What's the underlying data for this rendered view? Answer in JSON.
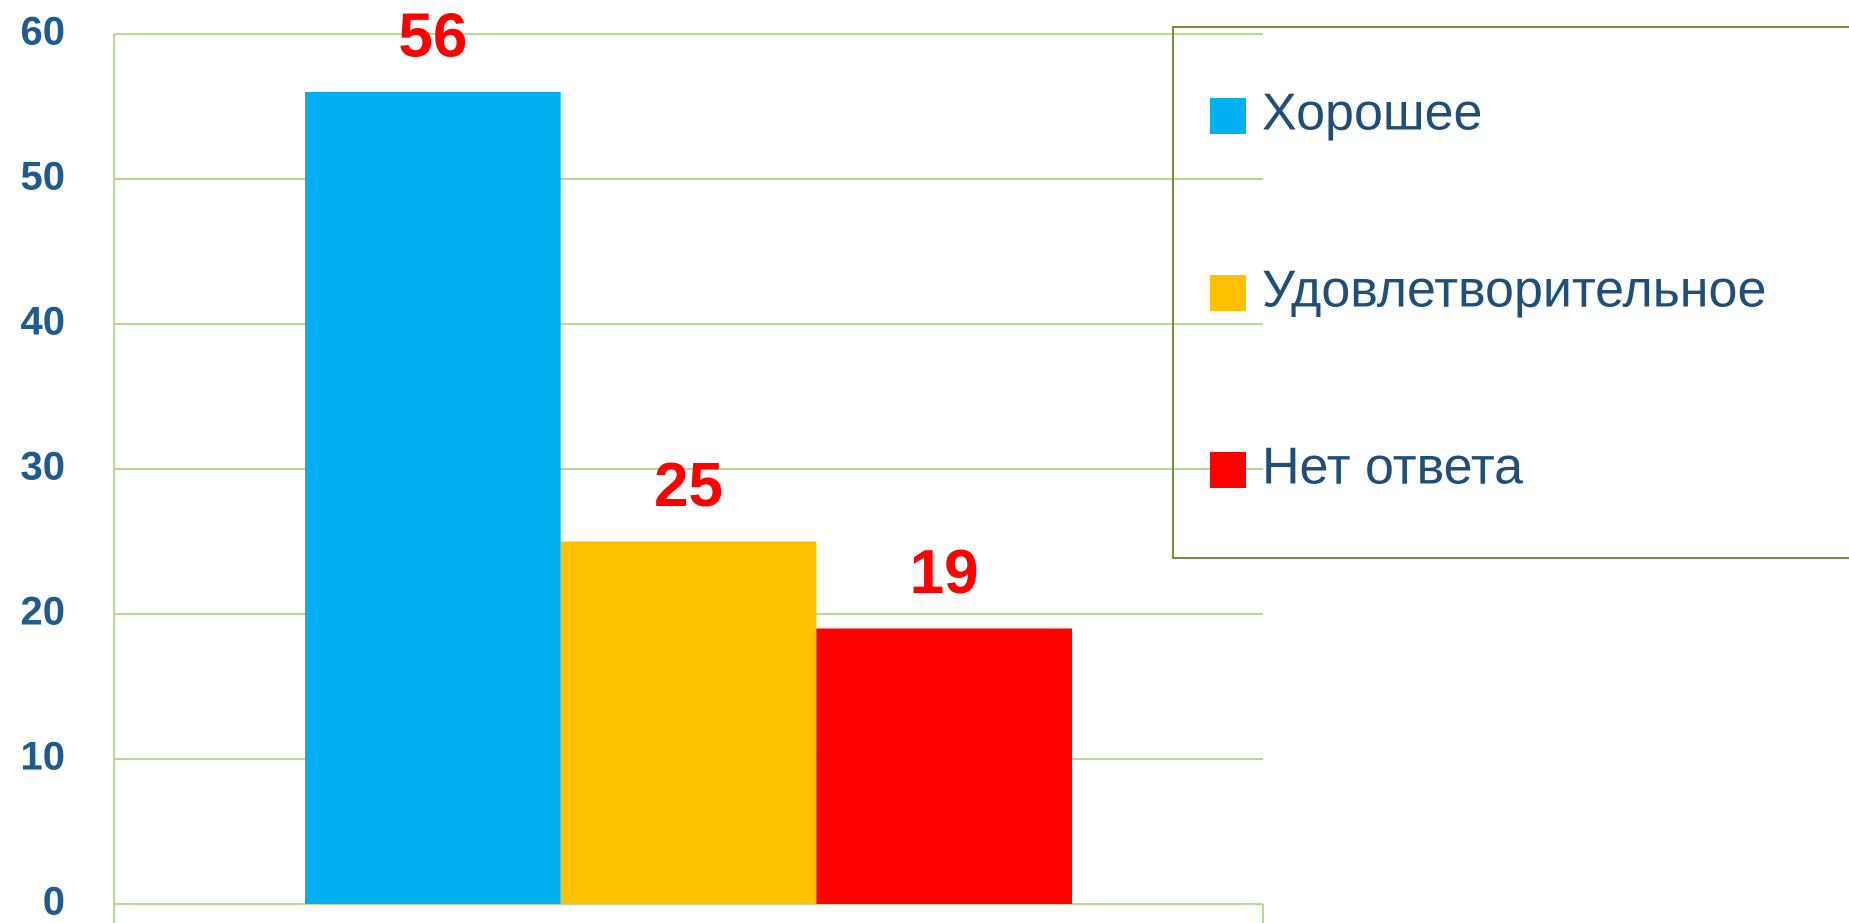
{
  "chart_data": {
    "type": "bar",
    "categories": [
      null
    ],
    "series": [
      {
        "name": "Хорошее",
        "color": "#00b0f0",
        "values": [
          56
        ]
      },
      {
        "name": "Удовлетворительное",
        "color": "#ffc000",
        "values": [
          25
        ]
      },
      {
        "name": "Нет ответа",
        "color": "#ff0000",
        "values": [
          19
        ]
      }
    ],
    "ylim": [
      0,
      60
    ],
    "yticks": [
      0,
      10,
      20,
      30,
      40,
      50,
      60
    ],
    "grid": true,
    "legend": "right",
    "label_color": "#ff0000"
  }
}
